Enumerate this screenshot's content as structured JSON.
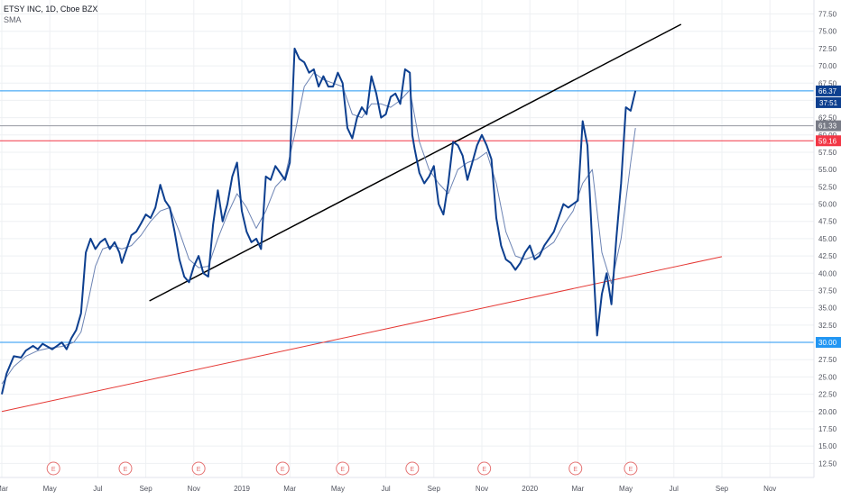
{
  "legend": {
    "title": "ETSY INC, 1D, Cboe BZX",
    "indicator": "SMA"
  },
  "colors": {
    "price": "#0d3f8f",
    "sma": "#6d84b4",
    "grid": "#eef0f3",
    "trend_black": "#000000",
    "trend_red": "#e53935",
    "level_blue": "#2196f3",
    "level_red": "#f23645",
    "level_gray": "#9598a1",
    "axis_text": "#50535e",
    "earnings": "#e57373",
    "badge_blue": "#0d3f8f",
    "badge_gray": "#787b86",
    "badge_red": "#f23645",
    "badge_light_blue": "#2196f3"
  },
  "chart_data": {
    "type": "line",
    "title": "ETSY INC, 1D, Cboe BZX",
    "ylim": [
      11.5,
      79
    ],
    "y_ticks": [
      "12.50",
      "15.00",
      "17.50",
      "20.00",
      "22.50",
      "25.00",
      "27.50",
      "30.00",
      "32.50",
      "35.00",
      "37.50",
      "40.00",
      "42.50",
      "45.00",
      "47.50",
      "50.00",
      "52.50",
      "55.00",
      "57.50",
      "60.00",
      "62.50",
      "65.00",
      "67.50",
      "70.00",
      "72.50",
      "75.00",
      "77.50"
    ],
    "x_ticks": [
      {
        "label": "Mar",
        "t": 0.0
      },
      {
        "label": "May",
        "t": 2.0
      },
      {
        "label": "Jul",
        "t": 4.0
      },
      {
        "label": "Sep",
        "t": 6.0
      },
      {
        "label": "Nov",
        "t": 8.0
      },
      {
        "label": "2019",
        "t": 10.0
      },
      {
        "label": "Mar",
        "t": 12.0
      },
      {
        "label": "May",
        "t": 14.0
      },
      {
        "label": "Jul",
        "t": 16.0
      },
      {
        "label": "Sep",
        "t": 18.0
      },
      {
        "label": "Nov",
        "t": 20.0
      },
      {
        "label": "2020",
        "t": 22.0
      },
      {
        "label": "Mar",
        "t": 24.0
      },
      {
        "label": "May",
        "t": 26.0
      },
      {
        "label": "Jul",
        "t": 28.0
      },
      {
        "label": "Sep",
        "t": 30.0
      },
      {
        "label": "Nov",
        "t": 32.0
      }
    ],
    "earnings_markers": [
      {
        "label": "E",
        "t": 2.15
      },
      {
        "label": "E",
        "t": 5.15
      },
      {
        "label": "E",
        "t": 8.2
      },
      {
        "label": "E",
        "t": 11.7
      },
      {
        "label": "E",
        "t": 14.2
      },
      {
        "label": "E",
        "t": 17.1
      },
      {
        "label": "E",
        "t": 20.1
      },
      {
        "label": "E",
        "t": 23.9
      },
      {
        "label": "E",
        "t": 26.2
      }
    ],
    "series": [
      {
        "name": "ETSY",
        "points": [
          [
            0.0,
            22.5
          ],
          [
            0.2,
            25.5
          ],
          [
            0.5,
            28.0
          ],
          [
            0.8,
            27.8
          ],
          [
            1.0,
            28.8
          ],
          [
            1.3,
            29.5
          ],
          [
            1.5,
            29.0
          ],
          [
            1.7,
            29.8
          ],
          [
            1.9,
            29.4
          ],
          [
            2.1,
            29.0
          ],
          [
            2.3,
            29.5
          ],
          [
            2.5,
            30.0
          ],
          [
            2.7,
            29.0
          ],
          [
            2.9,
            30.6
          ],
          [
            3.1,
            31.8
          ],
          [
            3.3,
            34.2
          ],
          [
            3.5,
            43.0
          ],
          [
            3.7,
            45.0
          ],
          [
            3.9,
            43.5
          ],
          [
            4.1,
            44.5
          ],
          [
            4.3,
            45.0
          ],
          [
            4.5,
            43.5
          ],
          [
            4.7,
            44.5
          ],
          [
            4.9,
            43.0
          ],
          [
            5.0,
            41.5
          ],
          [
            5.2,
            43.5
          ],
          [
            5.4,
            45.5
          ],
          [
            5.6,
            46.0
          ],
          [
            5.8,
            47.2
          ],
          [
            6.0,
            48.5
          ],
          [
            6.2,
            48.0
          ],
          [
            6.4,
            49.5
          ],
          [
            6.6,
            52.8
          ],
          [
            6.8,
            50.5
          ],
          [
            7.0,
            49.5
          ],
          [
            7.2,
            46.0
          ],
          [
            7.4,
            42.0
          ],
          [
            7.6,
            39.5
          ],
          [
            7.8,
            38.7
          ],
          [
            8.0,
            41.0
          ],
          [
            8.2,
            42.5
          ],
          [
            8.4,
            40.0
          ],
          [
            8.6,
            39.5
          ],
          [
            8.8,
            47.0
          ],
          [
            9.0,
            52.0
          ],
          [
            9.2,
            47.5
          ],
          [
            9.4,
            50.0
          ],
          [
            9.6,
            54.0
          ],
          [
            9.8,
            56.0
          ],
          [
            10.0,
            49.0
          ],
          [
            10.2,
            46.0
          ],
          [
            10.4,
            44.5
          ],
          [
            10.6,
            45.0
          ],
          [
            10.8,
            43.5
          ],
          [
            11.0,
            54.0
          ],
          [
            11.2,
            53.5
          ],
          [
            11.4,
            55.5
          ],
          [
            11.6,
            54.5
          ],
          [
            11.8,
            53.5
          ],
          [
            12.0,
            56.0
          ],
          [
            12.2,
            72.5
          ],
          [
            12.4,
            71.0
          ],
          [
            12.6,
            70.5
          ],
          [
            12.8,
            69.0
          ],
          [
            13.0,
            69.5
          ],
          [
            13.2,
            67.0
          ],
          [
            13.4,
            68.5
          ],
          [
            13.6,
            67.0
          ],
          [
            13.8,
            67.0
          ],
          [
            14.0,
            69.0
          ],
          [
            14.2,
            67.5
          ],
          [
            14.4,
            61.0
          ],
          [
            14.6,
            59.5
          ],
          [
            14.8,
            62.5
          ],
          [
            15.0,
            64.0
          ],
          [
            15.2,
            63.0
          ],
          [
            15.4,
            68.5
          ],
          [
            15.6,
            66.0
          ],
          [
            15.8,
            62.5
          ],
          [
            16.0,
            63.0
          ],
          [
            16.2,
            65.5
          ],
          [
            16.4,
            66.0
          ],
          [
            16.6,
            64.5
          ],
          [
            16.8,
            69.5
          ],
          [
            17.0,
            69.0
          ],
          [
            17.1,
            60.0
          ],
          [
            17.2,
            58.0
          ],
          [
            17.4,
            54.5
          ],
          [
            17.6,
            53.0
          ],
          [
            17.8,
            54.0
          ],
          [
            18.0,
            55.5
          ],
          [
            18.2,
            50.0
          ],
          [
            18.4,
            48.5
          ],
          [
            18.6,
            53.0
          ],
          [
            18.8,
            59.0
          ],
          [
            19.0,
            58.5
          ],
          [
            19.2,
            57.0
          ],
          [
            19.4,
            53.5
          ],
          [
            19.6,
            56.0
          ],
          [
            19.8,
            58.5
          ],
          [
            20.0,
            60.0
          ],
          [
            20.2,
            58.5
          ],
          [
            20.4,
            56.5
          ],
          [
            20.6,
            48.0
          ],
          [
            20.8,
            44.0
          ],
          [
            21.0,
            42.0
          ],
          [
            21.2,
            41.5
          ],
          [
            21.4,
            40.5
          ],
          [
            21.6,
            41.5
          ],
          [
            21.8,
            43.0
          ],
          [
            22.0,
            44.0
          ],
          [
            22.2,
            42.0
          ],
          [
            22.4,
            42.5
          ],
          [
            22.6,
            44.0
          ],
          [
            22.8,
            45.0
          ],
          [
            23.0,
            46.0
          ],
          [
            23.2,
            48.0
          ],
          [
            23.4,
            50.0
          ],
          [
            23.6,
            49.5
          ],
          [
            23.8,
            50.0
          ],
          [
            24.0,
            50.5
          ],
          [
            24.2,
            62.0
          ],
          [
            24.4,
            58.5
          ],
          [
            24.6,
            44.0
          ],
          [
            24.8,
            31.0
          ],
          [
            25.0,
            37.0
          ],
          [
            25.2,
            40.0
          ],
          [
            25.4,
            35.5
          ],
          [
            25.6,
            45.0
          ],
          [
            25.8,
            53.0
          ],
          [
            26.0,
            64.0
          ],
          [
            26.2,
            63.5
          ],
          [
            26.4,
            66.4
          ]
        ]
      },
      {
        "name": "SMA",
        "points": [
          [
            0.0,
            24.0
          ],
          [
            0.5,
            26.5
          ],
          [
            1.0,
            28.0
          ],
          [
            1.5,
            28.8
          ],
          [
            2.0,
            29.2
          ],
          [
            2.5,
            29.4
          ],
          [
            3.0,
            30.0
          ],
          [
            3.3,
            31.5
          ],
          [
            3.6,
            36.0
          ],
          [
            3.9,
            41.0
          ],
          [
            4.2,
            43.5
          ],
          [
            4.6,
            44.0
          ],
          [
            5.0,
            43.5
          ],
          [
            5.4,
            44.0
          ],
          [
            5.8,
            45.5
          ],
          [
            6.2,
            47.5
          ],
          [
            6.6,
            49.0
          ],
          [
            7.0,
            49.5
          ],
          [
            7.4,
            46.0
          ],
          [
            7.8,
            42.0
          ],
          [
            8.2,
            40.8
          ],
          [
            8.6,
            41.0
          ],
          [
            9.0,
            45.0
          ],
          [
            9.4,
            48.5
          ],
          [
            9.8,
            51.5
          ],
          [
            10.2,
            49.5
          ],
          [
            10.6,
            46.5
          ],
          [
            11.0,
            49.0
          ],
          [
            11.4,
            52.5
          ],
          [
            11.8,
            54.0
          ],
          [
            12.2,
            60.0
          ],
          [
            12.6,
            67.0
          ],
          [
            13.0,
            69.0
          ],
          [
            13.4,
            68.0
          ],
          [
            13.8,
            67.5
          ],
          [
            14.2,
            67.0
          ],
          [
            14.6,
            63.0
          ],
          [
            15.0,
            62.5
          ],
          [
            15.4,
            64.5
          ],
          [
            15.8,
            64.5
          ],
          [
            16.2,
            64.0
          ],
          [
            16.6,
            65.0
          ],
          [
            17.0,
            66.5
          ],
          [
            17.4,
            59.0
          ],
          [
            17.8,
            55.0
          ],
          [
            18.2,
            53.0
          ],
          [
            18.6,
            51.5
          ],
          [
            19.0,
            55.0
          ],
          [
            19.4,
            56.0
          ],
          [
            19.8,
            56.5
          ],
          [
            20.2,
            57.5
          ],
          [
            20.6,
            53.0
          ],
          [
            21.0,
            46.0
          ],
          [
            21.4,
            42.5
          ],
          [
            21.8,
            42.0
          ],
          [
            22.2,
            42.5
          ],
          [
            22.6,
            43.5
          ],
          [
            23.0,
            44.5
          ],
          [
            23.4,
            47.0
          ],
          [
            23.8,
            49.0
          ],
          [
            24.2,
            53.0
          ],
          [
            24.6,
            55.0
          ],
          [
            25.0,
            43.0
          ],
          [
            25.4,
            38.5
          ],
          [
            25.8,
            45.0
          ],
          [
            26.2,
            56.0
          ],
          [
            26.4,
            61.0
          ]
        ]
      }
    ],
    "trend_lines": [
      {
        "name": "trend-black",
        "from": [
          6.15,
          36.0
        ],
        "to": [
          28.3,
          76.0
        ]
      },
      {
        "name": "trend-red",
        "from": [
          0.0,
          20.0
        ],
        "to": [
          30.0,
          42.4
        ]
      }
    ],
    "horizontal_levels": [
      {
        "name": "level-66-37",
        "value": 66.37,
        "label": "66.37",
        "color_key": "level_blue",
        "badge_key": "badge_blue"
      },
      {
        "name": "level-61-33",
        "value": 61.33,
        "label": "61.33",
        "color_key": "level_gray",
        "badge_key": "badge_gray"
      },
      {
        "name": "level-59-16",
        "value": 59.16,
        "label": "59.16",
        "color_key": "level_red",
        "badge_key": "badge_red"
      },
      {
        "name": "level-30-00",
        "value": 30.0,
        "label": "30.00",
        "color_key": "level_blue",
        "badge_key": "badge_light_blue"
      }
    ],
    "countdown_badge": {
      "label": "37:51"
    }
  }
}
